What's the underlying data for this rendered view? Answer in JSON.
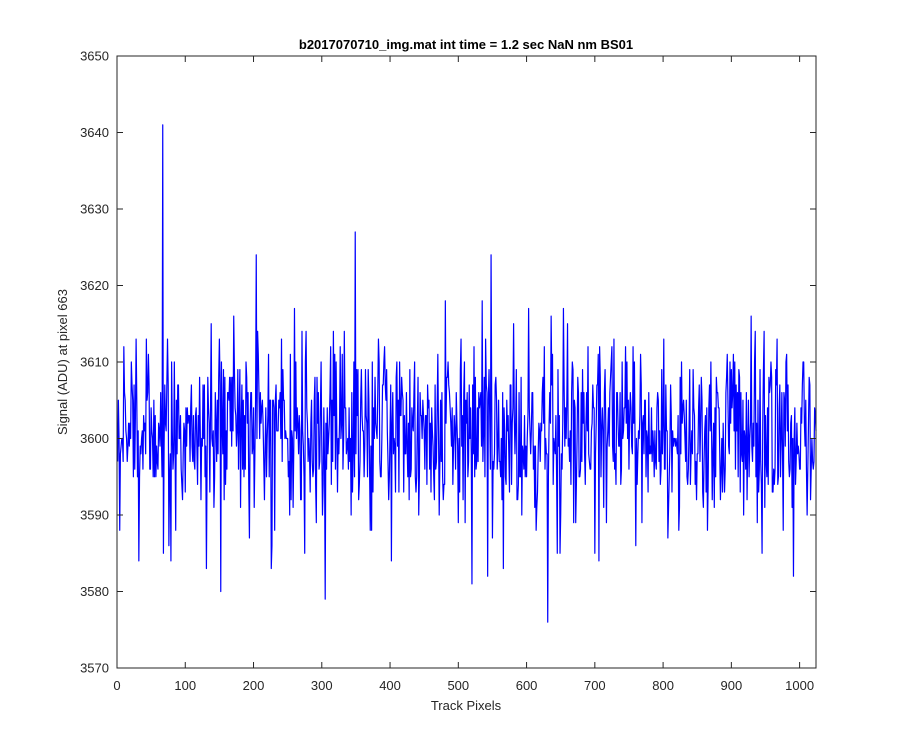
{
  "chart_data": {
    "type": "line",
    "title": "b2017070710_img.mat int time = 1.2 sec  NaN nm BS01",
    "xlabel": "Track Pixels",
    "ylabel": "Signal (ADU) at pixel 663",
    "xlim": [
      0,
      1024
    ],
    "ylim": [
      3570,
      3650
    ],
    "xticks": [
      0,
      100,
      200,
      300,
      400,
      500,
      600,
      700,
      800,
      900,
      1000
    ],
    "yticks": [
      3570,
      3580,
      3590,
      3600,
      3610,
      3620,
      3630,
      3640,
      3650
    ],
    "grid": false,
    "legend": "none",
    "series": [
      {
        "color": "#0000ff",
        "x_start": 1,
        "x_step": 1,
        "point_count": 1024,
        "mean": 3601,
        "noise_std": 6,
        "range": [
          3576,
          3641
        ],
        "notable_points": [
          {
            "x": 67,
            "y": 3641
          },
          {
            "x": 68,
            "y": 3585
          },
          {
            "x": 131,
            "y": 3583
          },
          {
            "x": 152,
            "y": 3580
          },
          {
            "x": 204,
            "y": 3624
          },
          {
            "x": 226,
            "y": 3583
          },
          {
            "x": 305,
            "y": 3579
          },
          {
            "x": 349,
            "y": 3627
          },
          {
            "x": 402,
            "y": 3584
          },
          {
            "x": 520,
            "y": 3581
          },
          {
            "x": 543,
            "y": 3582
          },
          {
            "x": 548,
            "y": 3624
          },
          {
            "x": 631,
            "y": 3576
          }
        ]
      }
    ]
  }
}
